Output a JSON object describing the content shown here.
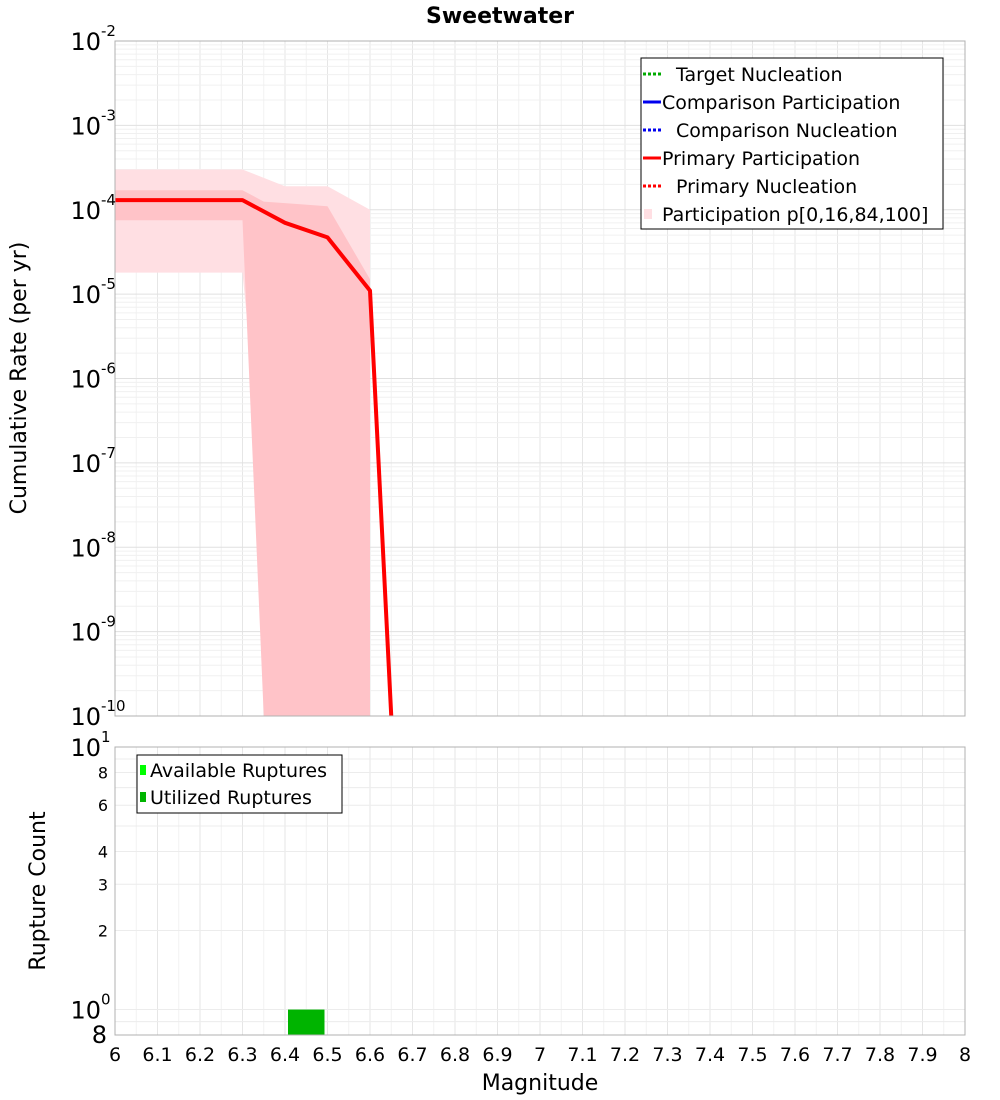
{
  "chart_data": [
    {
      "type": "line",
      "title": "Sweetwater",
      "xlabel": "",
      "ylabel": "Cumulative Rate (per yr)",
      "xlim": [
        6,
        8
      ],
      "ylim": [
        1e-10,
        0.01
      ],
      "y_scale": "log",
      "grid": true,
      "legend_position": "top-right",
      "legend": [
        {
          "name": "Target Nucleation",
          "color": "#00aa00",
          "style": "dotted"
        },
        {
          "name": "Comparison Participation",
          "color": "#0000ee",
          "style": "solid"
        },
        {
          "name": "Comparison Nucleation",
          "color": "#0000ee",
          "style": "dotted"
        },
        {
          "name": "Primary Participation",
          "color": "#ff0000",
          "style": "solid"
        },
        {
          "name": "Primary Nucleation",
          "color": "#ff0000",
          "style": "dotted"
        },
        {
          "name": "Participation p[0,16,84,100]",
          "color": "#ffdfe3",
          "style": "band"
        }
      ],
      "series": [
        {
          "name": "Primary Participation",
          "color": "#ff0000",
          "x": [
            6.0,
            6.3,
            6.4,
            6.5,
            6.6,
            6.65
          ],
          "y": [
            0.00013,
            0.00013,
            7e-05,
            4.7e-05,
            1.1e-05,
            1e-10
          ]
        }
      ],
      "bands": [
        {
          "name": "p0-p100",
          "color": "#ffdfe3",
          "x": [
            6.0,
            6.3,
            6.4,
            6.5,
            6.6
          ],
          "upper": [
            0.0003,
            0.0003,
            0.00019,
            0.00019,
            0.0001
          ],
          "lower": [
            1.8e-05,
            1.8e-05,
            1e-10,
            1e-10,
            1e-10
          ]
        },
        {
          "name": "p16-p84",
          "color": "#ffc3c8",
          "x": [
            6.0,
            6.3,
            6.35,
            6.4,
            6.5,
            6.6
          ],
          "upper": [
            0.00017,
            0.00017,
            0.000125,
            0.00012,
            0.00011,
            1.5e-05
          ],
          "lower": [
            7.5e-05,
            7.5e-05,
            1e-10,
            1e-10,
            1e-10,
            1e-10
          ]
        }
      ],
      "y_ticks": [
        {
          "value": 0.01,
          "base": "10",
          "exp": "-2"
        },
        {
          "value": 0.001,
          "base": "10",
          "exp": "-3"
        },
        {
          "value": 0.0001,
          "base": "10",
          "exp": "-4"
        },
        {
          "value": 1e-05,
          "base": "10",
          "exp": "-5"
        },
        {
          "value": 1e-06,
          "base": "10",
          "exp": "-6"
        },
        {
          "value": 1e-07,
          "base": "10",
          "exp": "-7"
        },
        {
          "value": 1e-08,
          "base": "10",
          "exp": "-8"
        },
        {
          "value": 1e-09,
          "base": "10",
          "exp": "-9"
        },
        {
          "value": 1e-10,
          "base": "10",
          "exp": "-10"
        }
      ]
    },
    {
      "type": "bar",
      "title": "",
      "xlabel": "Magnitude",
      "ylabel": "Rupture Count",
      "xlim": [
        6,
        8
      ],
      "ylim": [
        0.8,
        10
      ],
      "y_scale": "log",
      "grid": true,
      "legend_position": "top-left",
      "legend": [
        {
          "name": "Available Ruptures",
          "color": "#00ff00"
        },
        {
          "name": "Utilized Ruptures",
          "color": "#00b400"
        }
      ],
      "bars": [
        {
          "series": "Utilized Ruptures",
          "x0": 6.4,
          "x1": 6.5,
          "value": 1,
          "color": "#00b400"
        }
      ],
      "x_ticks": [
        "6",
        "6.1",
        "6.2",
        "6.3",
        "6.4",
        "6.5",
        "6.6",
        "6.7",
        "6.8",
        "6.9",
        "7",
        "7.1",
        "7.2",
        "7.3",
        "7.4",
        "7.5",
        "7.6",
        "7.7",
        "7.8",
        "7.9",
        "8"
      ],
      "y_ticks": [
        {
          "value": 10,
          "base": "10",
          "exp": "1"
        },
        {
          "value": 8,
          "label": "8"
        },
        {
          "value": 6,
          "label": "6"
        },
        {
          "value": 4,
          "label": "4"
        },
        {
          "value": 3,
          "label": "3"
        },
        {
          "value": 2,
          "label": "2"
        },
        {
          "value": 1,
          "base": "10",
          "exp": "0"
        },
        {
          "value": 0.8,
          "label": "8"
        }
      ]
    }
  ]
}
